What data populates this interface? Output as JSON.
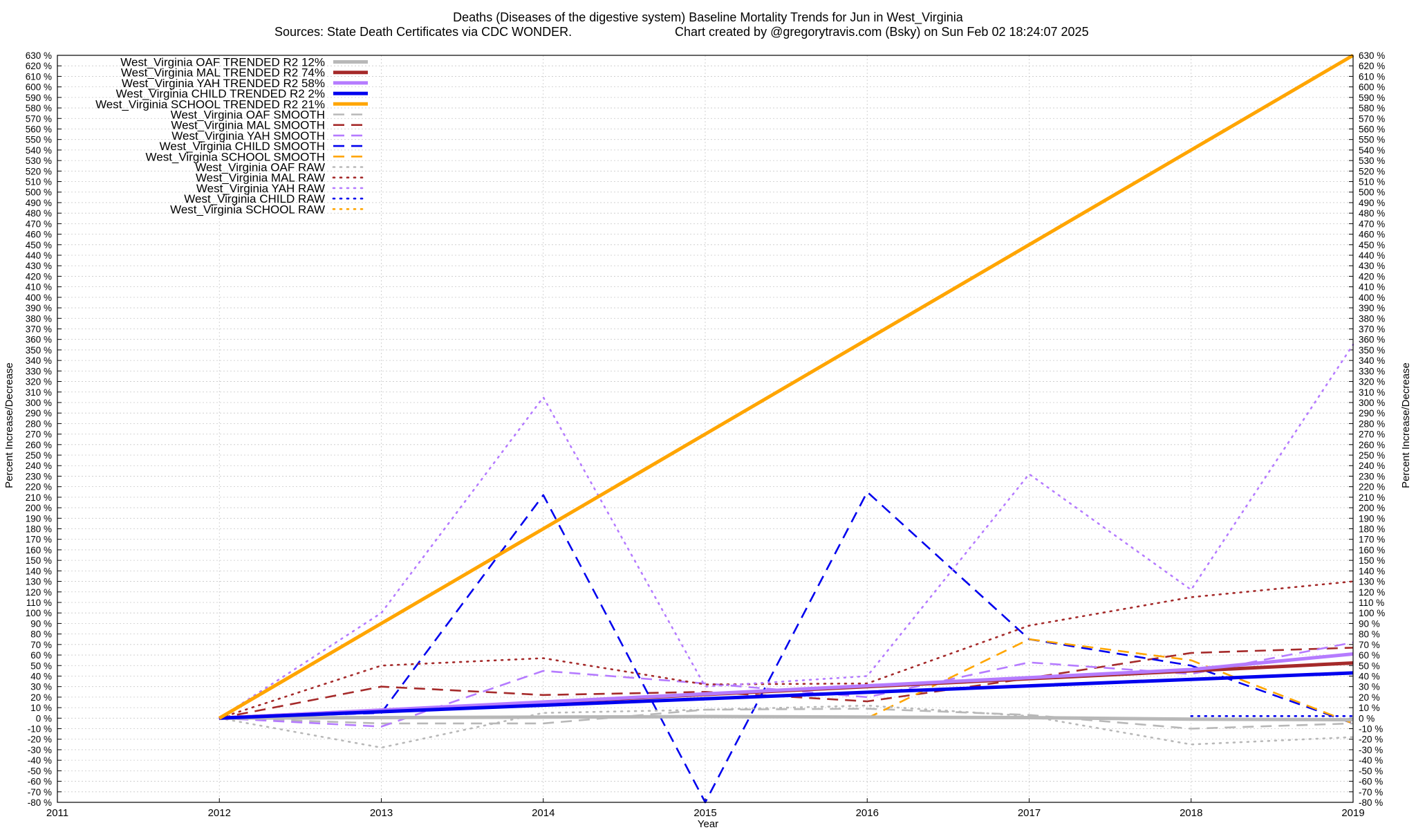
{
  "chart_data": {
    "type": "line",
    "title": "Deaths (Diseases of the digestive system)  Baseline Mortality Trends for Jun in West_Virginia",
    "subtitle_left": "Sources: State Death Certificates via CDC WONDER.",
    "subtitle_right": "Chart created by @gregorytravis.com (Bsky) on Sun Feb 02 18:24:07 2025",
    "xlabel": "Year",
    "ylabel_left": "Percent Increase/Decrease",
    "ylabel_right": "Percent Increase/Decrease",
    "xlim": [
      2011,
      2019
    ],
    "ylim": [
      -80,
      630
    ],
    "ytick_step": 10,
    "ytick_suffix": " %",
    "grid": true,
    "legend_position": "top-left",
    "x_ticks": [
      2011,
      2012,
      2013,
      2014,
      2015,
      2016,
      2017,
      2018,
      2019
    ],
    "x": [
      2012,
      2013,
      2014,
      2015,
      2016,
      2017,
      2018,
      2019
    ],
    "series": [
      {
        "name": "West_Virginia OAF TRENDED R2  12%",
        "style": "solid",
        "color": "#b8b8b8",
        "values": [
          0,
          0.5,
          1.0,
          1.5,
          1.0,
          0.5,
          -1.0,
          -1.5
        ]
      },
      {
        "name": "West_Virginia MAL TRENDED R2  74%",
        "style": "solid",
        "color": "#a52a2a",
        "values": [
          0,
          7.5,
          15,
          22.5,
          30,
          37.5,
          45,
          52.5
        ]
      },
      {
        "name": "West_Virginia YAH TRENDED R2  58%",
        "style": "solid",
        "color": "#b57bff",
        "values": [
          0,
          7.7,
          15.4,
          23.1,
          30.8,
          38.5,
          46.2,
          61
        ]
      },
      {
        "name": "West_Virginia CHILD TRENDED R2  2%",
        "style": "solid",
        "color": "#0000ee",
        "values": [
          0,
          6.1,
          12.3,
          18.4,
          24.6,
          30.7,
          36.9,
          43
        ]
      },
      {
        "name": "West_Virginia SCHOOL TRENDED R2  21%",
        "style": "solid",
        "color": "#ffa500",
        "values": [
          0,
          90,
          180,
          270,
          360,
          450,
          540,
          630
        ]
      },
      {
        "name": "West_Virginia OAF SMOOTH",
        "style": "dash",
        "color": "#b8b8b8",
        "values": [
          0,
          -5,
          -5,
          8,
          9,
          3,
          -10,
          -5
        ]
      },
      {
        "name": "West_Virginia MAL SMOOTH",
        "style": "dash",
        "color": "#a52a2a",
        "values": [
          0,
          30,
          22,
          25,
          16,
          38,
          62,
          67
        ]
      },
      {
        "name": "West_Virginia YAH SMOOTH",
        "style": "dash",
        "color": "#b57bff",
        "values": [
          0,
          -8,
          45,
          33,
          20,
          53,
          42,
          72
        ]
      },
      {
        "name": "West_Virginia CHILD SMOOTH",
        "style": "dash",
        "color": "#0000ee",
        "values": [
          0,
          5,
          212,
          -80,
          215,
          75,
          50,
          -5
        ]
      },
      {
        "name": "West_Virginia SCHOOL SMOOTH",
        "style": "dash",
        "color": "#ffa500",
        "values": [
          null,
          null,
          null,
          null,
          0,
          75,
          55,
          -5
        ]
      },
      {
        "name": "West_Virginia OAF RAW",
        "style": "dot",
        "color": "#b8b8b8",
        "values": [
          0,
          -28,
          5,
          8,
          12,
          2,
          -25,
          -18
        ]
      },
      {
        "name": "West_Virginia MAL RAW",
        "style": "dot",
        "color": "#a52a2a",
        "values": [
          0,
          50,
          57,
          32,
          33,
          88,
          115,
          130
        ]
      },
      {
        "name": "West_Virginia YAH RAW",
        "style": "dot",
        "color": "#b57bff",
        "values": [
          0,
          100,
          305,
          30,
          40,
          232,
          122,
          355
        ]
      },
      {
        "name": "West_Virginia CHILD RAW",
        "style": "dot",
        "color": "#0000ee",
        "values": [
          null,
          null,
          null,
          null,
          null,
          null,
          2,
          2
        ]
      },
      {
        "name": "West_Virginia SCHOOL RAW",
        "style": "dot",
        "color": "#ffa500",
        "values": [
          null,
          null,
          null,
          null,
          null,
          null,
          null,
          null
        ]
      }
    ]
  }
}
